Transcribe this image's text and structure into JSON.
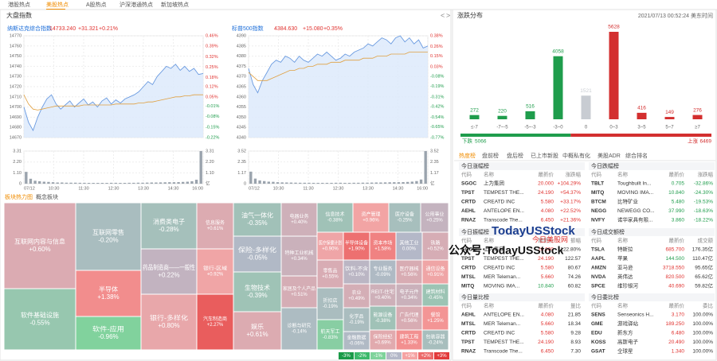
{
  "tabs": {
    "items": [
      "港股热点",
      "美股热点",
      "A股热点",
      "沪深港通热点",
      "新加坡热点"
    ],
    "active": 1
  },
  "index_panel": {
    "title": "大盘指数",
    "nav_prev": "<",
    "nav_next": ">"
  },
  "chart_data": [
    {
      "type": "line",
      "title": "纳斯达克综合指数",
      "price": "14733.240",
      "change": "+31.321",
      "percent": "+0.21%",
      "quote_color": "#e0312e",
      "xticks": [
        "07/12",
        "10:30",
        "11:30",
        "12:30",
        "13:30",
        "14:30",
        "16:00"
      ],
      "series": [
        {
          "color": "#6b9be0",
          "values": [
            14700,
            14685,
            14677,
            14690,
            14700,
            14708,
            14712,
            14703,
            14698,
            14702,
            14706,
            14700,
            14704,
            14708,
            14702,
            14705,
            14700,
            14706,
            14709,
            14703,
            14707,
            14704,
            14708,
            14710,
            14712,
            14715,
            14720,
            14725,
            14722,
            14730,
            14735,
            14740,
            14738,
            14742,
            14736,
            14740,
            14735,
            14738,
            14732,
            14733
          ]
        },
        {
          "color": "#e0a040",
          "values": [
            14712,
            14703,
            14698,
            14697,
            14698,
            14699,
            14700,
            14701,
            14701,
            14701,
            14701,
            14701,
            14701,
            14702,
            14702,
            14702,
            14702,
            14702,
            14702,
            14702,
            14703,
            14703,
            14703,
            14703,
            14703,
            14704,
            14704,
            14705,
            14705,
            14706,
            14707,
            14708,
            14709,
            14710,
            14710,
            14711,
            14711,
            14712,
            14712,
            14712
          ]
        }
      ],
      "ylim": [
        14670,
        14770
      ],
      "yticks": [
        14770,
        14760,
        14750,
        14740,
        14730,
        14720,
        14710,
        14700,
        14690,
        14680,
        14670
      ],
      "y2lim": [
        -0.22,
        0.46
      ],
      "y2ticks": [
        {
          "value": 0.46,
          "label": "0.46%"
        },
        {
          "value": 0.39,
          "label": "0.39%"
        },
        {
          "value": 0.32,
          "label": "0.32%"
        },
        {
          "value": 0.25,
          "label": "0.25%"
        },
        {
          "value": 0.18,
          "label": "0.18%"
        },
        {
          "value": 0.12,
          "label": "0.12%"
        },
        {
          "value": 0.05,
          "label": "0.05%"
        },
        {
          "value": -0.01,
          "label": "-0.01%"
        },
        {
          "value": -0.08,
          "label": "-0.08%"
        },
        {
          "value": -0.15,
          "label": "-0.15%"
        },
        {
          "value": -0.22,
          "label": "-0.22%"
        }
      ],
      "volume": {
        "unit": "亿",
        "color": "#9aa3ad",
        "ylim": [
          0,
          3.31
        ],
        "yticks": [
          3.31,
          {
            "value": 2.2,
            "label": "2.20"
          },
          {
            "value": 1.1,
            "label": "1.10"
          },
          0
        ],
        "values": [
          1.2,
          0.5,
          0.3,
          0.25,
          0.2,
          0.18,
          0.15,
          0.12,
          0.12,
          0.1,
          0.1,
          0.1,
          0.09,
          0.09,
          0.08,
          0.08,
          0.08,
          0.08,
          0.08,
          0.09,
          0.09,
          0.08,
          0.08,
          0.09,
          0.09,
          0.1,
          0.1,
          0.11,
          0.12,
          0.12,
          0.13,
          0.14,
          0.15,
          0.15,
          0.16,
          0.18,
          0.2,
          0.25,
          0.4,
          3.31
        ]
      }
    },
    {
      "type": "line",
      "title": "标普500指数",
      "price": "4384.630",
      "change": "+15.080",
      "percent": "+0.35%",
      "quote_color": "#e0312e",
      "xticks": [
        "07/12",
        "10:30",
        "11:30",
        "12:30",
        "13:30",
        "14:30",
        "16:00"
      ],
      "series": [
        {
          "color": "#6b9be0",
          "values": [
            4374,
            4366,
            4362,
            4368,
            4372,
            4376,
            4378,
            4377,
            4380,
            4379,
            4377,
            4380,
            4378,
            4377,
            4379,
            4381,
            4380,
            4382,
            4380,
            4378,
            4379,
            4381,
            4380,
            4382,
            4383,
            4384,
            4386,
            4385,
            4387,
            4389,
            4388,
            4386,
            4389,
            4390,
            4387,
            4389,
            4386,
            4388,
            4384,
            4385
          ]
        },
        {
          "color": "#e0a040",
          "values": [
            4372,
            4370,
            4368,
            4368,
            4368,
            4369,
            4370,
            4371,
            4372,
            4373,
            4373,
            4374,
            4374,
            4375,
            4375,
            4376,
            4376,
            4376,
            4377,
            4377,
            4377,
            4378,
            4378,
            4378,
            4378,
            4379,
            4379,
            4379,
            4380,
            4380,
            4380,
            4381,
            4381,
            4381,
            4381,
            4382,
            4382,
            4382,
            4382,
            4382
          ]
        }
      ],
      "ylim": [
        4340,
        4390
      ],
      "yticks": [
        4390,
        4385,
        4380,
        4375,
        4370,
        4365,
        4360,
        4355,
        4350,
        4345,
        4340
      ],
      "y2lim": [
        -0.77,
        0.38
      ],
      "y2ticks": [
        {
          "value": 0.38,
          "label": "0.38%"
        },
        {
          "value": 0.26,
          "label": "0.26%"
        },
        {
          "value": 0.15,
          "label": "0.15%"
        },
        {
          "value": 0.03,
          "label": "0.03%"
        },
        {
          "value": -0.08,
          "label": "-0.08%"
        },
        {
          "value": -0.19,
          "label": "-0.19%"
        },
        {
          "value": -0.31,
          "label": "-0.31%"
        },
        {
          "value": -0.42,
          "label": "-0.42%"
        },
        {
          "value": -0.54,
          "label": "-0.54%"
        },
        {
          "value": -0.65,
          "label": "-0.65%"
        },
        {
          "value": -0.77,
          "label": "-0.77%"
        }
      ],
      "volume": {
        "unit": "亿",
        "color": "#9aa3ad",
        "ylim": [
          0,
          3.52
        ],
        "yticks": [
          3.52,
          {
            "value": 2.35,
            "label": "2.35"
          },
          {
            "value": 1.17,
            "label": "1.17"
          },
          0
        ],
        "values": [
          1.3,
          0.55,
          0.35,
          0.28,
          0.22,
          0.2,
          0.16,
          0.14,
          0.13,
          0.12,
          0.11,
          0.1,
          0.1,
          0.1,
          0.09,
          0.09,
          0.09,
          0.09,
          0.09,
          0.1,
          0.1,
          0.09,
          0.09,
          0.1,
          0.1,
          0.11,
          0.11,
          0.12,
          0.13,
          0.13,
          0.14,
          0.15,
          0.16,
          0.16,
          0.17,
          0.19,
          0.22,
          0.28,
          0.45,
          3.52
        ]
      }
    },
    {
      "type": "treemap",
      "title": "板块热力图",
      "alt_tab": "概念板块",
      "legend": [
        {
          "value": -3,
          "label": "-3%",
          "color": "#1a9a48"
        },
        {
          "value": -2,
          "label": "-2%",
          "color": "#3cb96a"
        },
        {
          "value": -1,
          "label": "-1%",
          "color": "#7fd39b"
        },
        {
          "value": 0,
          "label": "0%",
          "color": "#b4b8c8"
        },
        {
          "value": 1,
          "label": "+1%",
          "color": "#f5a3a3"
        },
        {
          "value": 2,
          "label": "+2%",
          "color": "#ec6a6a"
        },
        {
          "value": 3,
          "label": "+3%",
          "color": "#e23a3a"
        }
      ],
      "cells": [
        {
          "name": "互联网内容与信息",
          "value": 0.6,
          "label": "+0.60%"
        },
        {
          "name": "软件基础设施",
          "value": -0.55,
          "label": "-0.55%"
        },
        {
          "name": "互联网零售",
          "value": -0.2,
          "label": "-0.20%"
        },
        {
          "name": "半导体",
          "value": 1.38,
          "label": "+1.38%"
        },
        {
          "name": "软件-应用",
          "value": -0.96,
          "label": "-0.96%"
        },
        {
          "name": "消费类电子",
          "value": -0.28,
          "label": "-0.28%"
        },
        {
          "name": "药品制造商——一般性",
          "value": 0.22,
          "label": "+0.22%"
        },
        {
          "name": "银行-多样化",
          "value": 0.8,
          "label": "+0.80%"
        },
        {
          "name": "信息服务",
          "value": 0.61,
          "label": "+0.61%"
        },
        {
          "name": "银行-区域",
          "value": 0.92,
          "label": "+0.92%"
        },
        {
          "name": "汽车制造商",
          "value": 2.27,
          "label": "+2.27%"
        },
        {
          "name": "油气一体化",
          "value": -0.35,
          "label": "-0.35%"
        },
        {
          "name": "保险-多样化",
          "value": -0.05,
          "label": "-0.05%"
        },
        {
          "name": "生物技术",
          "value": -0.39,
          "label": "-0.39%"
        },
        {
          "name": "娱乐",
          "value": 0.61,
          "label": "+0.61%"
        },
        {
          "name": "电器业务",
          "value": 0.4,
          "label": "+0.40%"
        },
        {
          "name": "特种工业机械",
          "value": 0.34,
          "label": "+0.34%"
        },
        {
          "name": "家居及个人产品",
          "value": 0.51,
          "label": "+0.51%"
        },
        {
          "name": "诊断与研究",
          "value": -0.14,
          "label": "-0.14%"
        },
        {
          "name": "信息技术",
          "value": -0.38,
          "label": "-0.38%"
        },
        {
          "name": "资产管理",
          "value": 0.96,
          "label": "+0.96%"
        },
        {
          "name": "医疗设备",
          "value": -0.25,
          "label": "-0.25%"
        },
        {
          "name": "公用事业",
          "value": 0.25,
          "label": "+0.25%"
        },
        {
          "name": "医疗保健计划",
          "value": 0.9,
          "label": "+0.90%"
        },
        {
          "name": "半导体设备",
          "value": 1.9,
          "label": "+1.90%"
        },
        {
          "name": "资本市场",
          "value": 1.58,
          "label": "+1.58%"
        },
        {
          "name": "其他工业",
          "value": 0,
          "label": "0.00%"
        },
        {
          "name": "铁路",
          "value": 0.52,
          "label": "+0.52%"
        },
        {
          "name": "零售品",
          "value": 0.55,
          "label": "+0.55%"
        },
        {
          "name": "饮料-不含",
          "value": 0.1,
          "label": "+0.10%"
        },
        {
          "name": "专业服务",
          "value": -0.09,
          "label": "-0.09%"
        },
        {
          "name": "医疗器械",
          "value": 0.56,
          "label": "+0.56%"
        },
        {
          "name": "通信设备",
          "value": 0.91,
          "label": "+0.91%"
        },
        {
          "name": "折扣店",
          "value": -0.19,
          "label": "-0.19%"
        },
        {
          "name": "农业",
          "value": 0.49,
          "label": "+0.49%"
        },
        {
          "name": "航天军工",
          "value": -0.83,
          "label": "-0.83%"
        },
        {
          "name": "REIT-住宅",
          "value": 0.4,
          "label": "+0.40%"
        },
        {
          "name": "电子元件",
          "value": 0.34,
          "label": "+0.34%"
        },
        {
          "name": "建筑材料",
          "value": -0.45,
          "label": "-0.45%"
        },
        {
          "name": "化学品",
          "value": -0.19,
          "label": "-0.19%"
        },
        {
          "name": "能源设备",
          "value": -0.38,
          "label": "-0.38%"
        },
        {
          "name": "金融数据",
          "value": -0.06,
          "label": "-0.06%"
        },
        {
          "name": "广告代理",
          "value": 0.56,
          "label": "+0.56%"
        },
        {
          "name": "餐馆",
          "value": 1.25,
          "label": "+1.25%"
        },
        {
          "name": "保险经纪",
          "value": 0.69,
          "label": "+0.69%"
        },
        {
          "name": "建筑工程",
          "value": 1.33,
          "label": "+1.33%"
        },
        {
          "name": "包装容器",
          "value": -0.24,
          "label": "-0.24%"
        }
      ]
    },
    {
      "type": "bar",
      "title": "涨跌分布",
      "timestamp": "2021/07/13 00:52:24 美东时间",
      "categories": [
        "≤-7",
        "-7~-5",
        "-5~-3",
        "-3~0",
        "0",
        "0~3",
        "3~5",
        "5~7",
        "≥7"
      ],
      "values": [
        272,
        220,
        516,
        4058,
        1521,
        5628,
        416,
        149,
        276
      ],
      "colors": [
        "#1f9d4c",
        "#1f9d4c",
        "#1f9d4c",
        "#1f9d4c",
        "#c8ccd2",
        "#d32f2f",
        "#d32f2f",
        "#d32f2f",
        "#d32f2f"
      ],
      "down_label": "下跌",
      "down": 5066,
      "down_color": "#1f9d4c",
      "up_label": "上涨",
      "up": 6469,
      "up_color": "#d32f2f"
    }
  ],
  "rank_tabs": {
    "items": [
      "热度榜",
      "盘前榜",
      "盘后榜",
      "已上市新股",
      "中概私有化",
      "美股ADR",
      "综合排名"
    ],
    "active": 0
  },
  "rankings": [
    {
      "title": "今日涨幅榜",
      "columns": [
        "代码",
        "名称",
        "最新价",
        "涨跌幅"
      ],
      "color_last": true,
      "colors": [
        "#e0312e",
        "#e0312e",
        "#e0312e",
        "#e0312e",
        "#e0312e"
      ],
      "rows": [
        [
          "SGOC",
          "上为集团",
          "20.000",
          "+104.29%"
        ],
        [
          "TPST",
          "TEMPEST THE...",
          "24.190",
          "+54.37%"
        ],
        [
          "CRTD",
          "CREATD INC",
          "5.580",
          "+33.17%"
        ],
        [
          "AEHL",
          "ANTELOPE EN...",
          "4.080",
          "+22.52%"
        ],
        [
          "RNAZ",
          "Transcode The...",
          "6.450",
          "+21.36%"
        ]
      ]
    },
    {
      "title": "今日跌幅榜",
      "columns": [
        "代码",
        "名称",
        "最新价",
        "涨跌幅"
      ],
      "color_last": true,
      "colors": [
        "#1f9d4c",
        "#1f9d4c",
        "#1f9d4c",
        "#1f9d4c",
        "#1f9d4c"
      ],
      "rows": [
        [
          "TBLT",
          "Toughbuilt In...",
          "0.705",
          "-32.86%"
        ],
        [
          "MITQ",
          "MOVING IMA...",
          "10.840",
          "-24.30%"
        ],
        [
          "BTCM",
          "比特矿业",
          "5.480",
          "-19.53%"
        ],
        [
          "NEGG",
          "NEWEGG CO...",
          "37.990",
          "-18.63%"
        ],
        [
          "NVFY",
          "诺华家具有限...",
          "3.860",
          "-18.22%"
        ]
      ]
    },
    {
      "title": "今日振幅榜",
      "columns": [
        "代码",
        "名称",
        "最新价",
        "振幅"
      ],
      "color_last": false,
      "colors": [
        "#e0312e",
        "#e0312e",
        "#e0312e",
        "#e0312e",
        "#1f9d4c"
      ],
      "rows": [
        [
          "SGOC",
          "上为集团",
          "20.000",
          "122.80%"
        ],
        [
          "TPST",
          "TEMPEST THE...",
          "24.190",
          "122.57"
        ],
        [
          "CRTD",
          "CREATD INC",
          "5.580",
          "80.67"
        ],
        [
          "MTSL",
          "MER Teleman...",
          "5.660",
          "74.26"
        ],
        [
          "MITQ",
          "MOVING IMA...",
          "10.840",
          "60.82"
        ]
      ]
    },
    {
      "title": "今日成交额榜",
      "columns": [
        "代码",
        "名称",
        "最新价",
        "成交额"
      ],
      "color_last": false,
      "colors": [
        "#e0312e",
        "#1f9d4c",
        "#e0312e",
        "#e0312e",
        "#e0312e"
      ],
      "rows": [
        [
          "TSLA",
          "特斯拉",
          "685.700",
          "176.35亿"
        ],
        [
          "AAPL",
          "苹果",
          "144.500",
          "110.47亿"
        ],
        [
          "AMZN",
          "亚马逊",
          "3718.550",
          "95.65亿"
        ],
        [
          "NVDA",
          "英伟达",
          "820.500",
          "65.62亿"
        ],
        [
          "SPCE",
          "维珍银河",
          "40.690",
          "59.82亿"
        ]
      ]
    },
    {
      "title": "今日量比榜",
      "columns": [
        "代码",
        "名称",
        "最新价",
        "量比"
      ],
      "color_last": false,
      "colors": [
        "#e0312e",
        "#e0312e",
        "#e0312e",
        "#e0312e",
        "#e0312e"
      ],
      "rows": [
        [
          "AEHL",
          "ANTELOPE EN...",
          "4.080",
          "21.85"
        ],
        [
          "MTSL",
          "MER Teleman...",
          "5.660",
          "18.34"
        ],
        [
          "CRTD",
          "CREATD INC",
          "5.580",
          "9.28"
        ],
        [
          "TPST",
          "TEMPEST THE...",
          "24.190",
          "8.93"
        ],
        [
          "RNAZ",
          "Transcode The...",
          "6.450",
          "7.30"
        ]
      ]
    },
    {
      "title": "今日委比榜",
      "columns": [
        "代码",
        "名称",
        "最新价",
        "委比"
      ],
      "color_last": false,
      "colors": [
        "#e0312e",
        "#e0312e",
        "#e0312e",
        "#e0312e",
        "#e0312e"
      ],
      "rows": [
        [
          "SENS",
          "Senseonics H...",
          "3.170",
          "100.00%"
        ],
        [
          "GME",
          "游戏驿站",
          "189.250",
          "100.00%"
        ],
        [
          "EDU",
          "新东方",
          "6.480",
          "100.00%"
        ],
        [
          "KOSS",
          "高斯电子",
          "20.490",
          "100.00%"
        ],
        [
          "GSAT",
          "全球星",
          "1.340",
          "100.00%"
        ]
      ]
    }
  ],
  "watermark": {
    "brand": "TodayUSStock",
    "brand_cn": "今日美股网",
    "account": "公众号:TodayUSStock"
  }
}
